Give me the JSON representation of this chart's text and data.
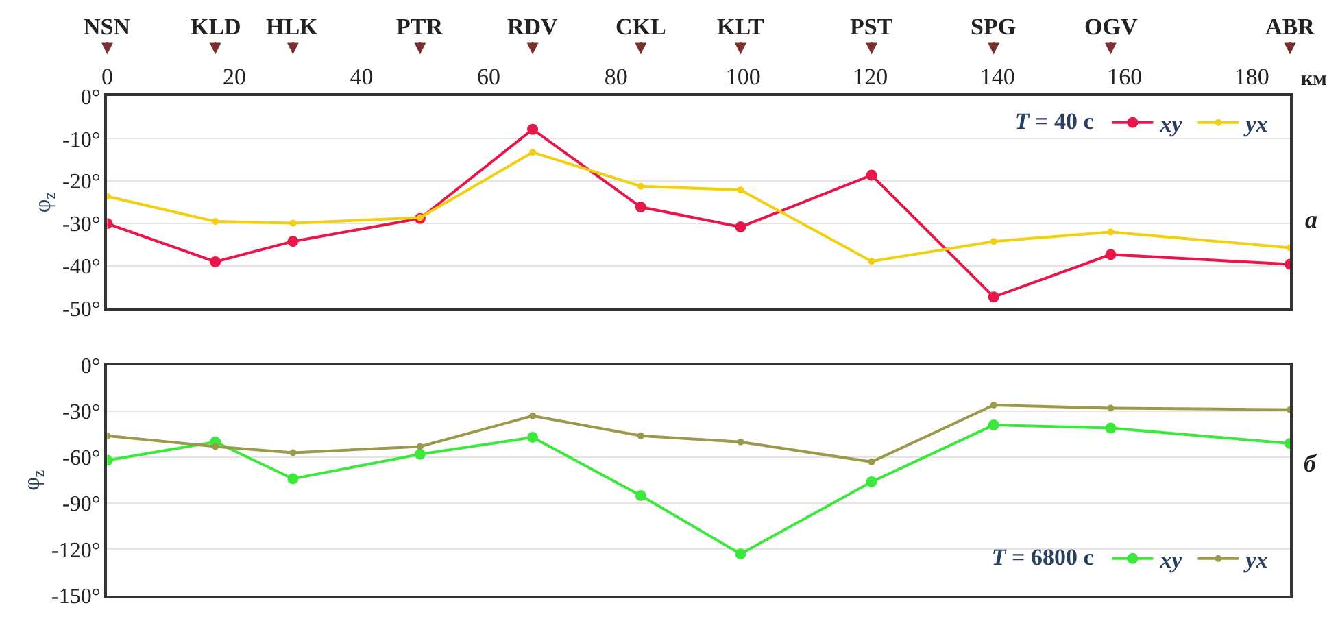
{
  "chart_data": [
    {
      "type": "line",
      "legend_title": "T = 40 с",
      "ylabel": "φ$_{z}$",
      "xlabel": "км",
      "x": [
        0,
        17,
        29.2,
        49.2,
        66.9,
        83.9,
        99.6,
        120.2,
        139.4,
        157.8,
        186
      ],
      "series": [
        {
          "name": "xy",
          "color": "#e8174a",
          "values": [
            -30,
            -39,
            -34.2,
            -28.8,
            -7.8,
            -26.1,
            -30.8,
            -18.6,
            -47.3,
            -37.3,
            -39.6
          ]
        },
        {
          "name": "yx",
          "color": "#f2cf10",
          "values": [
            -23.6,
            -29.5,
            -29.9,
            -28.6,
            -13.2,
            -21.2,
            -22.1,
            -38.9,
            -34.2,
            -32,
            -35.7
          ]
        }
      ],
      "xlim": [
        0,
        186
      ],
      "xticks": [
        0,
        20,
        40,
        60,
        80,
        100,
        120,
        140,
        160,
        180
      ],
      "ylim": [
        -50,
        0
      ],
      "yticks": [
        {
          "value": -50,
          "label": "-50°"
        },
        {
          "value": -40,
          "label": "-40°"
        },
        {
          "value": -30,
          "label": "-30°"
        },
        {
          "value": -20,
          "label": "-20°"
        },
        {
          "value": -10,
          "label": "-10°"
        },
        {
          "value": 0,
          "label": "0°"
        }
      ],
      "annotations": [
        {
          "text": "NSN",
          "x": 0
        },
        {
          "text": "KLD",
          "x": 17
        },
        {
          "text": "HLK",
          "x": 29.2
        },
        {
          "text": "PTR",
          "x": 49.2
        },
        {
          "text": "RDV",
          "x": 66.9
        },
        {
          "text": "CKL",
          "x": 83.9
        },
        {
          "text": "KLT",
          "x": 99.6
        },
        {
          "text": "PST",
          "x": 120.2
        },
        {
          "text": "SPG",
          "x": 139.4
        },
        {
          "text": "OGV",
          "x": 157.8
        },
        {
          "text": "ABR",
          "x": 186
        },
        "а"
      ],
      "grid": "y",
      "legend": "top right",
      "marker": "circle",
      "line_style": "solid"
    },
    {
      "type": "line",
      "legend_title": "T = 6800 с",
      "ylabel": "φ$_{z}$",
      "x": [
        0,
        17,
        29.2,
        49.2,
        66.9,
        83.9,
        99.6,
        120.2,
        139.4,
        157.8,
        186
      ],
      "series": [
        {
          "name": "xy",
          "color": "#3de83d",
          "values": [
            -62,
            -50,
            -74,
            -58,
            -47,
            -85,
            -123,
            -76,
            -39,
            -41,
            -51
          ]
        },
        {
          "name": "yx",
          "color": "#9a9a4a",
          "values": [
            -46,
            -53,
            -57,
            -53,
            -33,
            -46,
            -50,
            -63,
            -26,
            -28,
            -29
          ]
        }
      ],
      "xlim": [
        0,
        186
      ],
      "ylim": [
        -150,
        0
      ],
      "yticks": [
        {
          "value": -150,
          "label": "-150°"
        },
        {
          "value": -120,
          "label": "-120°"
        },
        {
          "value": -90,
          "label": "-90°"
        },
        {
          "value": -60,
          "label": "-60°"
        },
        {
          "value": -30,
          "label": "-30°"
        },
        {
          "value": 0,
          "label": "0°"
        }
      ],
      "annotations": [
        "б"
      ],
      "tick_labels": "y",
      "grid": "y",
      "legend": "bottom right",
      "marker": "circle",
      "line_style": "solid"
    }
  ]
}
